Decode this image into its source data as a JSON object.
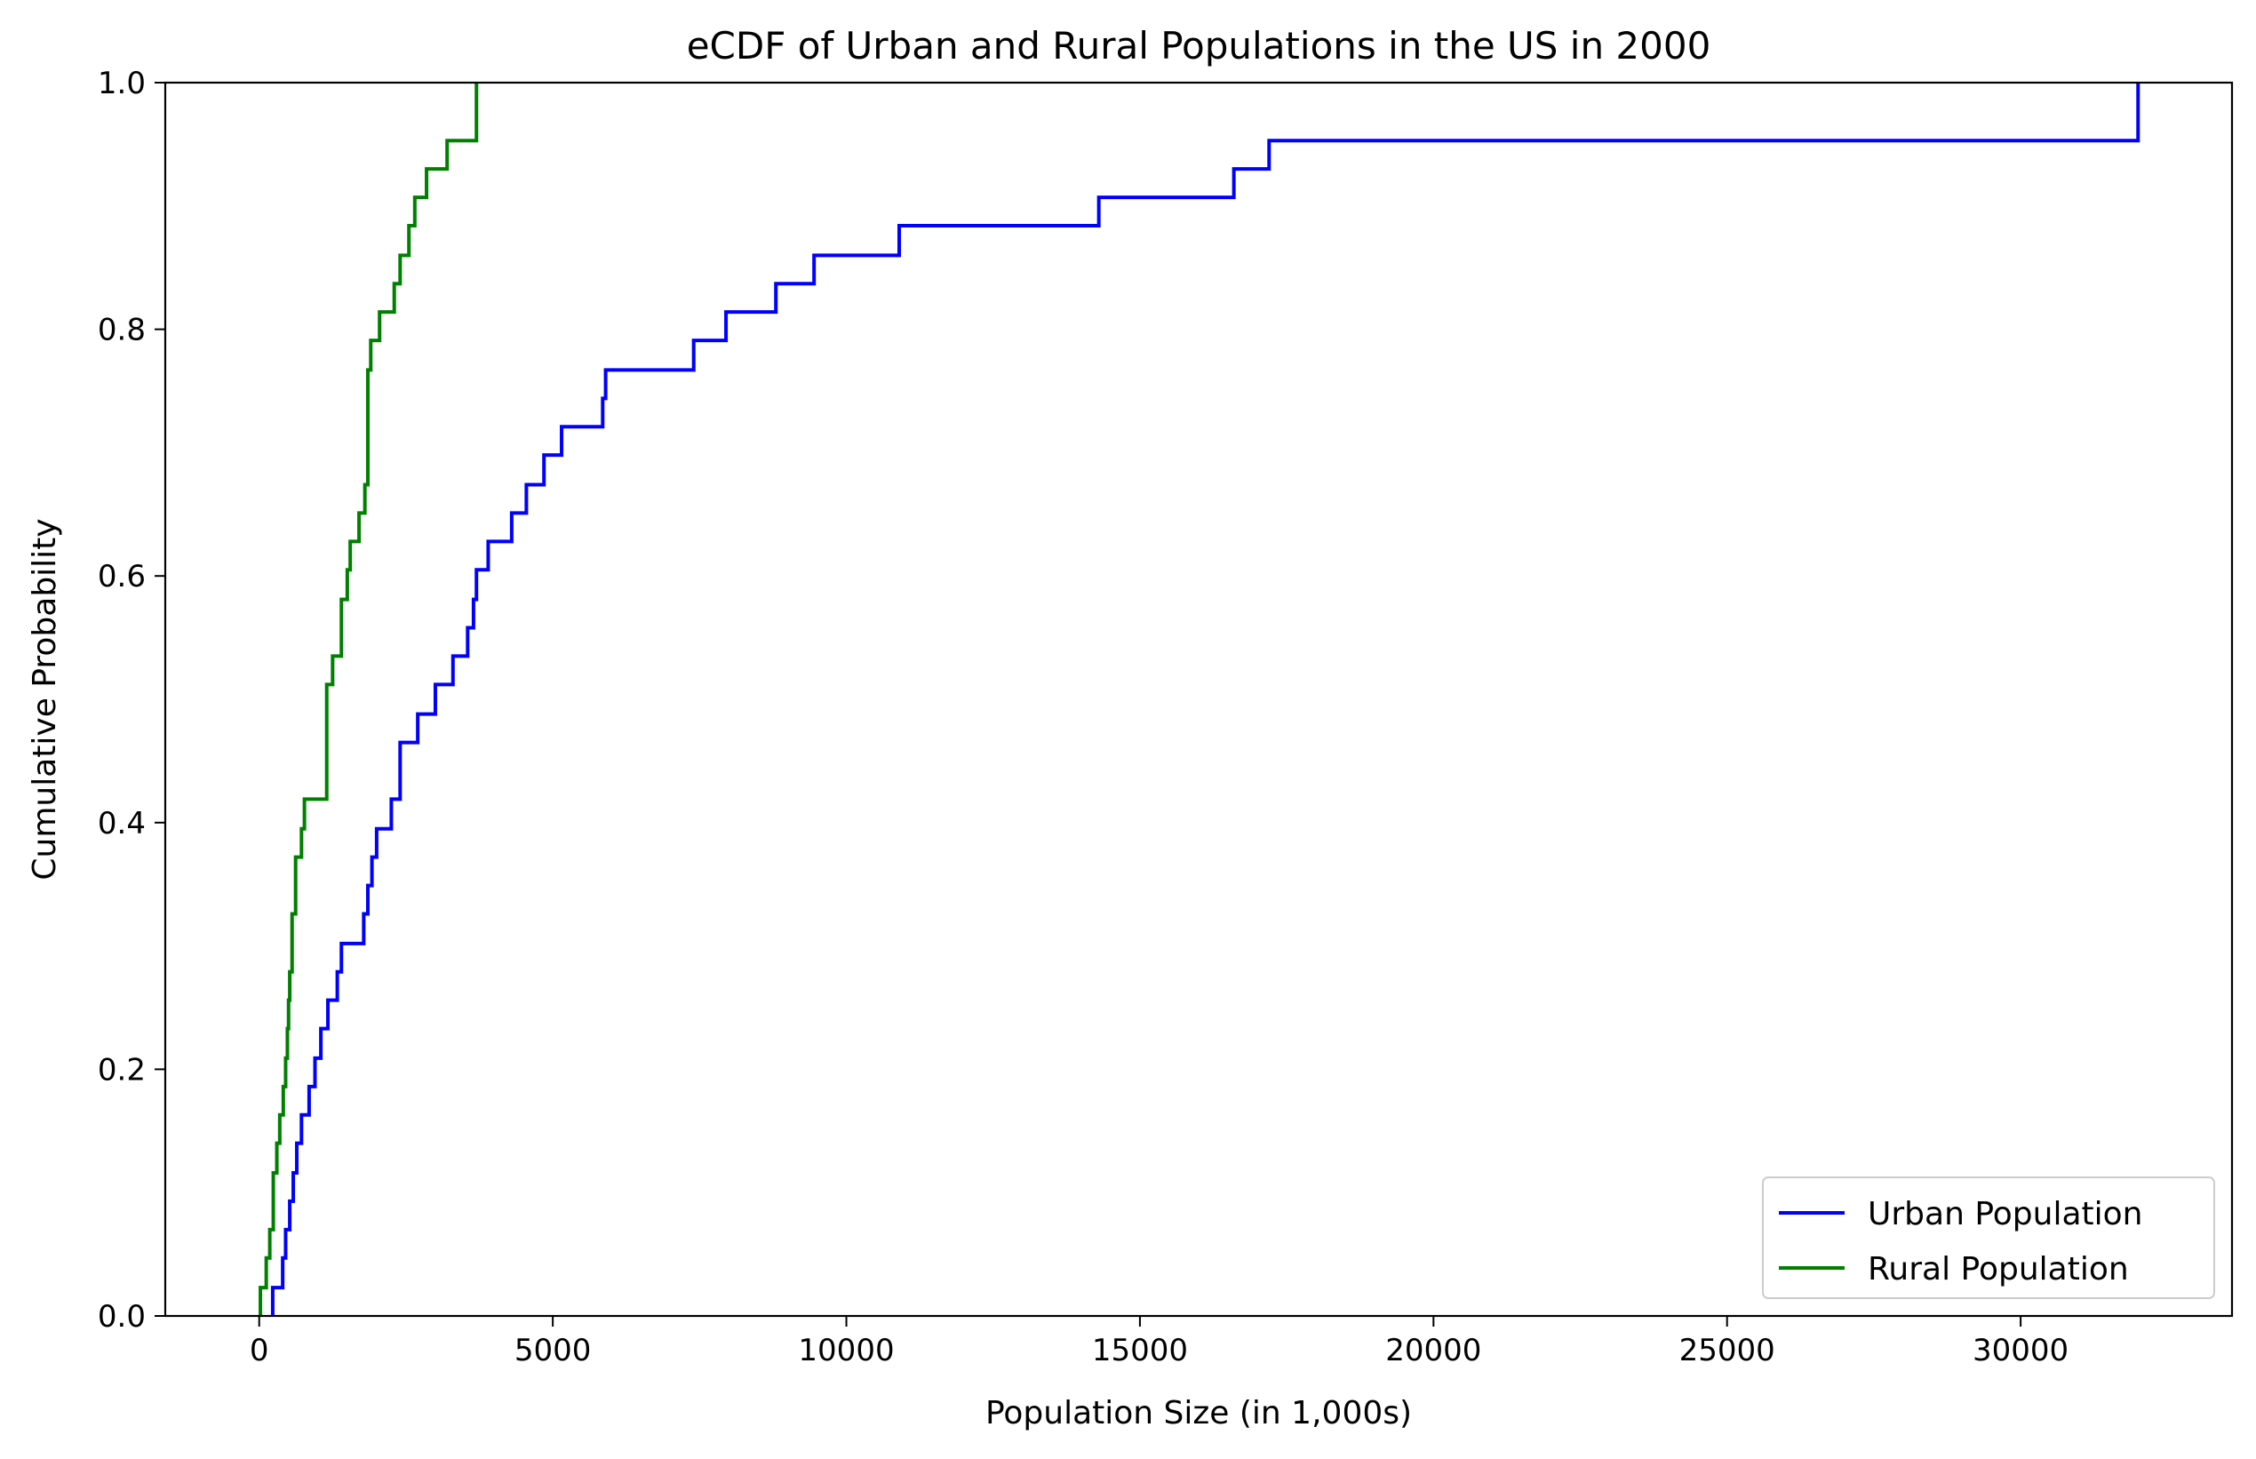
{
  "chart_data": {
    "type": "line",
    "step": true,
    "title": "eCDF of Urban and Rural Populations in the US in 2000",
    "xlabel": "Population Size (in 1,000s)",
    "ylabel": "Cumulative Probability",
    "xlim": [
      -1600,
      33600
    ],
    "ylim": [
      0.0,
      1.0
    ],
    "xticks": [
      0,
      5000,
      10000,
      15000,
      20000,
      25000,
      30000
    ],
    "xtick_labels": [
      "0",
      "5000",
      "10000",
      "15000",
      "20000",
      "25000",
      "30000"
    ],
    "yticks": [
      0.0,
      0.2,
      0.4,
      0.6,
      0.8,
      1.0
    ],
    "ytick_labels": [
      "0.0",
      "0.2",
      "0.4",
      "0.6",
      "0.8",
      "1.0"
    ],
    "grid": false,
    "legend_position": "lower-right",
    "series": [
      {
        "name": "Urban Population",
        "color": "#0000ff",
        "x": [
          230,
          400,
          450,
          520,
          580,
          640,
          720,
          850,
          950,
          1050,
          1170,
          1330,
          1400,
          1780,
          1850,
          1920,
          2000,
          2250,
          2400,
          2700,
          3000,
          3300,
          3550,
          3650,
          3700,
          3900,
          4300,
          4550,
          4850,
          5150,
          5850,
          5900,
          7400,
          7950,
          8800,
          9450,
          10900,
          14300,
          16600,
          17200,
          32000
        ],
        "y": [
          0.023,
          0.047,
          0.07,
          0.093,
          0.116,
          0.14,
          0.163,
          0.186,
          0.209,
          0.233,
          0.256,
          0.279,
          0.302,
          0.326,
          0.349,
          0.372,
          0.395,
          0.419,
          0.465,
          0.488,
          0.512,
          0.535,
          0.558,
          0.581,
          0.605,
          0.628,
          0.651,
          0.674,
          0.698,
          0.721,
          0.744,
          0.767,
          0.791,
          0.814,
          0.837,
          0.86,
          0.884,
          0.907,
          0.93,
          0.953,
          0.977
        ]
      },
      {
        "name": "Rural Population",
        "color": "#008000",
        "x": [
          20,
          120,
          180,
          240,
          300,
          350,
          410,
          450,
          480,
          500,
          520,
          560,
          620,
          720,
          770,
          1150,
          1250,
          1400,
          1500,
          1550,
          1700,
          1800,
          1850,
          1900,
          2050,
          2300,
          2400,
          2550,
          2650,
          2850,
          3200,
          3700
        ],
        "y": [
          0.023,
          0.047,
          0.07,
          0.116,
          0.14,
          0.163,
          0.186,
          0.209,
          0.233,
          0.256,
          0.279,
          0.326,
          0.372,
          0.395,
          0.419,
          0.512,
          0.535,
          0.581,
          0.605,
          0.628,
          0.651,
          0.674,
          0.767,
          0.791,
          0.814,
          0.837,
          0.86,
          0.884,
          0.907,
          0.93,
          0.953,
          0.977
        ]
      }
    ]
  }
}
